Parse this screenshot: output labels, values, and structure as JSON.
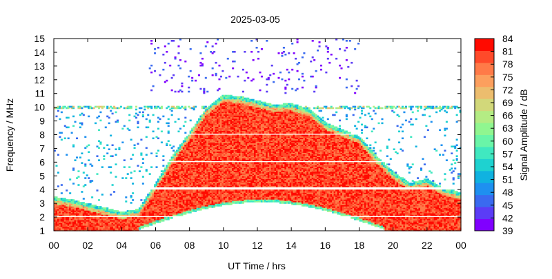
{
  "chart_data": {
    "type": "heatmap",
    "title": "2025-03-05",
    "xlabel": "UT Time / hrs",
    "ylabel": "Frequency / MHz",
    "colorbar_label": "Signal Amplitude / dB",
    "x_range": [
      0,
      24
    ],
    "y_range": [
      1,
      15
    ],
    "z_range": [
      39,
      84
    ],
    "x_ticks": [
      "00",
      "02",
      "04",
      "06",
      "08",
      "10",
      "12",
      "14",
      "16",
      "18",
      "20",
      "22",
      "00"
    ],
    "y_ticks": [
      "1",
      "2",
      "3",
      "4",
      "5",
      "6",
      "7",
      "8",
      "9",
      "10",
      "11",
      "12",
      "13",
      "14",
      "15"
    ],
    "colorbar_ticks": [
      "39",
      "42",
      "45",
      "48",
      "51",
      "54",
      "57",
      "60",
      "63",
      "66",
      "69",
      "72",
      "75",
      "78",
      "81",
      "84"
    ],
    "colorbar_colors": [
      "#8000ff",
      "#5b3cf6",
      "#3a6af0",
      "#1e90f0",
      "#10b2e0",
      "#1ed2d0",
      "#40e8c0",
      "#6af5a8",
      "#90f690",
      "#b4ec84",
      "#d2d87a",
      "#ecbd6e",
      "#fc9f5e",
      "#ff7a48",
      "#ff4a2a",
      "#ff0a00"
    ],
    "fof2_profile_hours": [
      0,
      1,
      2,
      3,
      4,
      5,
      6,
      7,
      8,
      9,
      10,
      11,
      12,
      13,
      14,
      15,
      16,
      17,
      18,
      19,
      20,
      21,
      22,
      23,
      24
    ],
    "fof2_profile_mhz": [
      3.5,
      3.3,
      3.0,
      2.7,
      2.4,
      2.6,
      4.5,
      6.5,
      8.2,
      10.0,
      10.9,
      10.8,
      10.5,
      10.2,
      10.3,
      9.9,
      8.9,
      8.4,
      7.9,
      6.5,
      5.3,
      4.5,
      4.8,
      4.1,
      3.8
    ],
    "grid": false,
    "legend": "colorbar-right"
  }
}
